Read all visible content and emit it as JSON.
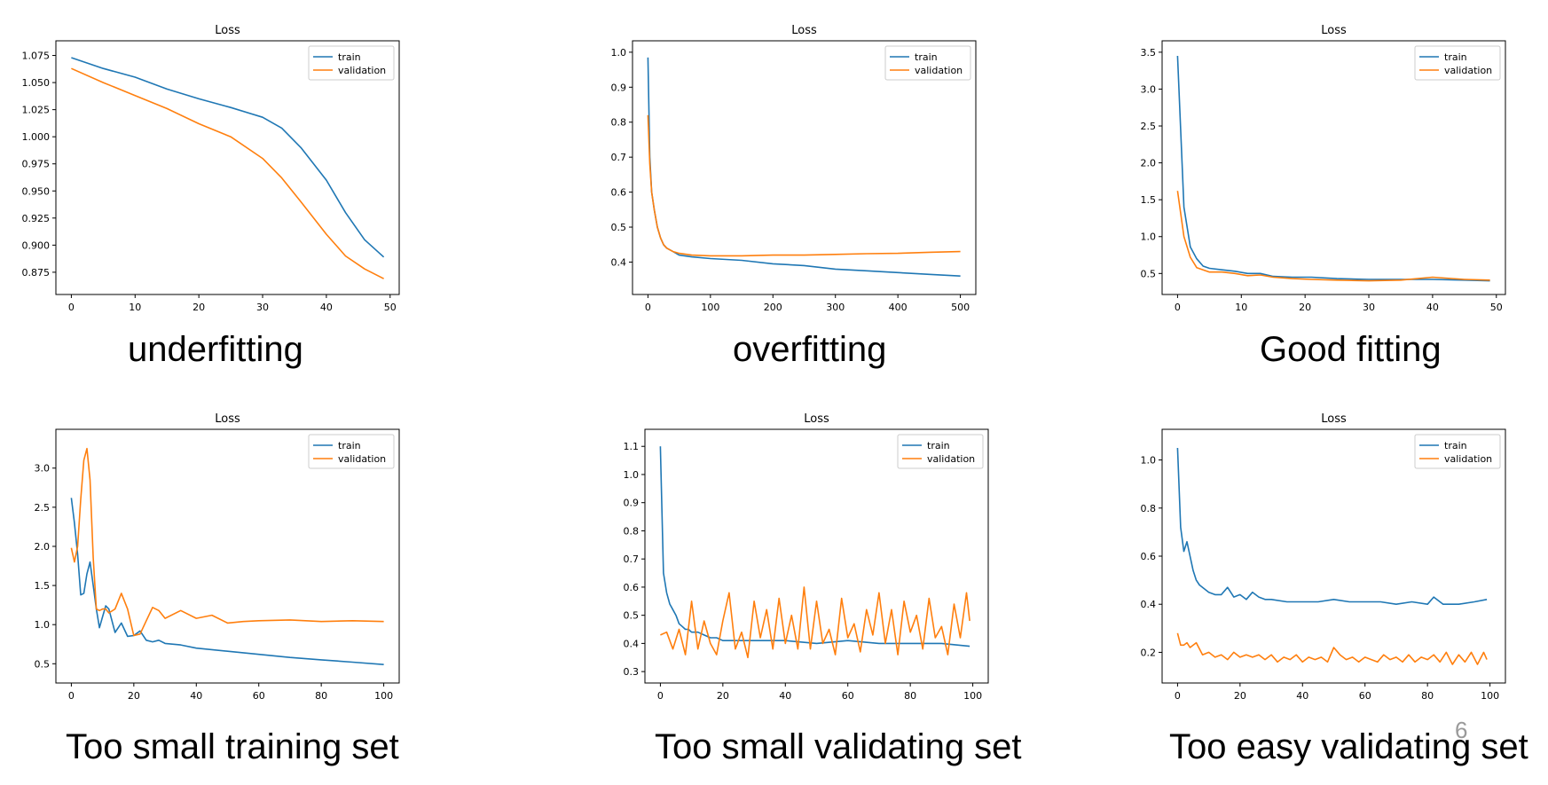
{
  "slide": {
    "page_number": "6"
  },
  "colors": {
    "train": "#1f77b4",
    "validation": "#ff7f0e"
  },
  "legend": {
    "position": "top-right"
  },
  "chart_data": [
    {
      "type": "line",
      "title": "Loss",
      "caption": "underfitting",
      "xlim": [
        0,
        49
      ],
      "ylim": [
        0.865,
        1.078
      ],
      "xticks": [
        0,
        10,
        20,
        30,
        40,
        50
      ],
      "xtick_labels": [
        "0",
        "10",
        "20",
        "30",
        "40",
        "50"
      ],
      "yticks": [
        0.875,
        0.9,
        0.925,
        0.95,
        0.975,
        1.0,
        1.025,
        1.05,
        1.075
      ],
      "ytick_labels": [
        "0.875",
        "0.900",
        "0.925",
        "0.950",
        "0.975",
        "1.000",
        "1.025",
        "1.050",
        "1.075"
      ],
      "series": [
        {
          "name": "train",
          "x": [
            0,
            5,
            10,
            15,
            20,
            25,
            30,
            33,
            36,
            40,
            43,
            46,
            49
          ],
          "y": [
            1.073,
            1.063,
            1.055,
            1.044,
            1.035,
            1.027,
            1.018,
            1.008,
            0.99,
            0.96,
            0.93,
            0.905,
            0.889
          ]
        },
        {
          "name": "validation",
          "x": [
            0,
            5,
            10,
            15,
            20,
            25,
            30,
            33,
            36,
            40,
            43,
            46,
            49
          ],
          "y": [
            1.063,
            1.05,
            1.038,
            1.026,
            1.012,
            1.0,
            0.98,
            0.962,
            0.94,
            0.91,
            0.89,
            0.878,
            0.869
          ]
        }
      ]
    },
    {
      "type": "line",
      "title": "Loss",
      "caption": "overfitting",
      "xlim": [
        0,
        500
      ],
      "ylim": [
        0.34,
        1.0
      ],
      "xticks": [
        0,
        100,
        200,
        300,
        400,
        500
      ],
      "xtick_labels": [
        "0",
        "100",
        "200",
        "300",
        "400",
        "500"
      ],
      "yticks": [
        0.4,
        0.5,
        0.6,
        0.7,
        0.8,
        0.9,
        1.0
      ],
      "ytick_labels": [
        "0.4",
        "0.5",
        "0.6",
        "0.7",
        "0.8",
        "0.9",
        "1.0"
      ],
      "series": [
        {
          "name": "train",
          "x": [
            0,
            3,
            6,
            10,
            15,
            20,
            25,
            30,
            40,
            50,
            70,
            100,
            150,
            200,
            250,
            300,
            350,
            400,
            450,
            500
          ],
          "y": [
            0.985,
            0.7,
            0.6,
            0.55,
            0.5,
            0.47,
            0.45,
            0.44,
            0.43,
            0.42,
            0.415,
            0.41,
            0.405,
            0.395,
            0.39,
            0.38,
            0.375,
            0.37,
            0.365,
            0.36
          ]
        },
        {
          "name": "validation",
          "x": [
            0,
            3,
            6,
            10,
            15,
            20,
            25,
            30,
            40,
            50,
            70,
            100,
            150,
            200,
            250,
            300,
            350,
            400,
            450,
            500
          ],
          "y": [
            0.82,
            0.68,
            0.6,
            0.55,
            0.5,
            0.47,
            0.45,
            0.44,
            0.43,
            0.425,
            0.42,
            0.418,
            0.418,
            0.42,
            0.42,
            0.422,
            0.424,
            0.425,
            0.428,
            0.43
          ]
        }
      ]
    },
    {
      "type": "line",
      "title": "Loss",
      "caption": "Good fitting",
      "xlim": [
        0,
        49
      ],
      "ylim": [
        0.37,
        3.5
      ],
      "xticks": [
        0,
        10,
        20,
        30,
        40,
        50
      ],
      "xtick_labels": [
        "0",
        "10",
        "20",
        "30",
        "40",
        "50"
      ],
      "yticks": [
        0.5,
        1.0,
        1.5,
        2.0,
        2.5,
        3.0,
        3.5
      ],
      "ytick_labels": [
        "0.5",
        "1.0",
        "1.5",
        "2.0",
        "2.5",
        "3.0",
        "3.5"
      ],
      "series": [
        {
          "name": "train",
          "x": [
            0,
            1,
            2,
            3,
            4,
            5,
            7,
            9,
            11,
            13,
            15,
            18,
            21,
            25,
            30,
            35,
            40,
            45,
            49
          ],
          "y": [
            3.45,
            1.4,
            0.86,
            0.7,
            0.6,
            0.57,
            0.55,
            0.53,
            0.5,
            0.5,
            0.46,
            0.45,
            0.45,
            0.43,
            0.42,
            0.42,
            0.42,
            0.41,
            0.4
          ]
        },
        {
          "name": "validation",
          "x": [
            0,
            1,
            2,
            3,
            4,
            5,
            7,
            9,
            11,
            13,
            15,
            18,
            21,
            25,
            30,
            35,
            40,
            45,
            49
          ],
          "y": [
            1.62,
            1.0,
            0.72,
            0.58,
            0.55,
            0.52,
            0.52,
            0.5,
            0.47,
            0.48,
            0.45,
            0.43,
            0.42,
            0.41,
            0.4,
            0.41,
            0.45,
            0.42,
            0.41
          ]
        }
      ]
    },
    {
      "type": "line",
      "title": "Loss",
      "caption": "Too small training set",
      "xlim": [
        0,
        100
      ],
      "ylim": [
        0.4,
        3.35
      ],
      "xticks": [
        0,
        20,
        40,
        60,
        80,
        100
      ],
      "xtick_labels": [
        "0",
        "20",
        "40",
        "60",
        "80",
        "100"
      ],
      "yticks": [
        0.5,
        1.0,
        1.5,
        2.0,
        2.5,
        3.0
      ],
      "ytick_labels": [
        "0.5",
        "1.0",
        "1.5",
        "2.0",
        "2.5",
        "3.0"
      ],
      "series": [
        {
          "name": "train",
          "x": [
            0,
            1,
            2,
            3,
            4,
            5,
            6,
            7,
            8,
            9,
            10,
            11,
            12,
            14,
            16,
            18,
            20,
            22,
            24,
            26,
            28,
            30,
            35,
            40,
            50,
            60,
            70,
            80,
            90,
            100
          ],
          "y": [
            2.62,
            2.3,
            1.9,
            1.38,
            1.4,
            1.65,
            1.8,
            1.5,
            1.2,
            0.96,
            1.1,
            1.24,
            1.2,
            0.9,
            1.02,
            0.85,
            0.86,
            0.92,
            0.8,
            0.78,
            0.8,
            0.76,
            0.74,
            0.7,
            0.66,
            0.62,
            0.58,
            0.55,
            0.52,
            0.49
          ]
        },
        {
          "name": "validation",
          "x": [
            0,
            1,
            2,
            3,
            4,
            5,
            6,
            7,
            8,
            9,
            10,
            11,
            12,
            14,
            16,
            18,
            20,
            22,
            24,
            26,
            28,
            30,
            35,
            40,
            45,
            50,
            55,
            60,
            70,
            80,
            90,
            100
          ],
          "y": [
            1.98,
            1.8,
            2.0,
            2.6,
            3.1,
            3.25,
            2.85,
            1.85,
            1.2,
            1.18,
            1.2,
            1.2,
            1.15,
            1.2,
            1.4,
            1.2,
            0.86,
            0.88,
            1.05,
            1.22,
            1.18,
            1.08,
            1.18,
            1.08,
            1.12,
            1.02,
            1.04,
            1.05,
            1.06,
            1.04,
            1.05,
            1.04
          ]
        }
      ]
    },
    {
      "type": "line",
      "title": "Loss",
      "caption": "Too small validating set",
      "xlim": [
        0,
        100
      ],
      "ylim": [
        0.3,
        1.12
      ],
      "xticks": [
        0,
        20,
        40,
        60,
        80,
        100
      ],
      "xtick_labels": [
        "0",
        "20",
        "40",
        "60",
        "80",
        "100"
      ],
      "yticks": [
        0.3,
        0.4,
        0.5,
        0.6,
        0.7,
        0.8,
        0.9,
        1.0,
        1.1
      ],
      "ytick_labels": [
        "0.3",
        "0.4",
        "0.5",
        "0.6",
        "0.7",
        "0.8",
        "0.9",
        "1.0",
        "1.1"
      ],
      "series": [
        {
          "name": "train",
          "x": [
            0,
            1,
            2,
            3,
            4,
            5,
            6,
            7,
            8,
            9,
            10,
            12,
            14,
            16,
            18,
            20,
            25,
            30,
            40,
            50,
            60,
            70,
            80,
            90,
            99
          ],
          "y": [
            1.1,
            0.65,
            0.58,
            0.54,
            0.52,
            0.5,
            0.47,
            0.46,
            0.45,
            0.45,
            0.44,
            0.44,
            0.43,
            0.42,
            0.42,
            0.41,
            0.41,
            0.41,
            0.41,
            0.4,
            0.41,
            0.4,
            0.4,
            0.4,
            0.39
          ]
        },
        {
          "name": "validation",
          "x": [
            0,
            2,
            4,
            6,
            8,
            10,
            12,
            14,
            16,
            18,
            20,
            22,
            24,
            26,
            28,
            30,
            32,
            34,
            36,
            38,
            40,
            42,
            44,
            46,
            48,
            50,
            52,
            54,
            56,
            58,
            60,
            62,
            64,
            66,
            68,
            70,
            72,
            74,
            76,
            78,
            80,
            82,
            84,
            86,
            88,
            90,
            92,
            94,
            96,
            98,
            99
          ],
          "y": [
            0.43,
            0.44,
            0.38,
            0.45,
            0.36,
            0.55,
            0.38,
            0.48,
            0.4,
            0.36,
            0.48,
            0.58,
            0.38,
            0.44,
            0.35,
            0.55,
            0.42,
            0.52,
            0.38,
            0.56,
            0.4,
            0.5,
            0.38,
            0.6,
            0.38,
            0.55,
            0.4,
            0.45,
            0.36,
            0.56,
            0.42,
            0.47,
            0.37,
            0.52,
            0.43,
            0.58,
            0.4,
            0.52,
            0.36,
            0.55,
            0.44,
            0.5,
            0.38,
            0.56,
            0.42,
            0.46,
            0.36,
            0.54,
            0.42,
            0.58,
            0.48
          ]
        }
      ]
    },
    {
      "type": "line",
      "title": "Loss",
      "caption": "Too easy validating set",
      "xlim": [
        0,
        100
      ],
      "ylim": [
        0.12,
        1.08
      ],
      "xticks": [
        0,
        20,
        40,
        60,
        80,
        100
      ],
      "xtick_labels": [
        "0",
        "20",
        "40",
        "60",
        "80",
        "100"
      ],
      "yticks": [
        0.2,
        0.4,
        0.6,
        0.8,
        1.0
      ],
      "ytick_labels": [
        "0.2",
        "0.4",
        "0.6",
        "0.8",
        "1.0"
      ],
      "series": [
        {
          "name": "train",
          "x": [
            0,
            1,
            2,
            3,
            4,
            5,
            6,
            7,
            8,
            10,
            12,
            14,
            16,
            18,
            20,
            22,
            24,
            26,
            28,
            30,
            35,
            40,
            45,
            50,
            55,
            60,
            65,
            70,
            75,
            80,
            82,
            85,
            90,
            95,
            99
          ],
          "y": [
            1.05,
            0.72,
            0.62,
            0.66,
            0.6,
            0.54,
            0.5,
            0.48,
            0.47,
            0.45,
            0.44,
            0.44,
            0.47,
            0.43,
            0.44,
            0.42,
            0.45,
            0.43,
            0.42,
            0.42,
            0.41,
            0.41,
            0.41,
            0.42,
            0.41,
            0.41,
            0.41,
            0.4,
            0.41,
            0.4,
            0.43,
            0.4,
            0.4,
            0.41,
            0.42
          ]
        },
        {
          "name": "validation",
          "x": [
            0,
            1,
            2,
            3,
            4,
            6,
            8,
            10,
            12,
            14,
            16,
            18,
            20,
            22,
            24,
            26,
            28,
            30,
            32,
            34,
            36,
            38,
            40,
            42,
            44,
            46,
            48,
            50,
            52,
            54,
            56,
            58,
            60,
            62,
            64,
            66,
            68,
            70,
            72,
            74,
            76,
            78,
            80,
            82,
            84,
            86,
            88,
            90,
            92,
            94,
            96,
            98,
            99
          ],
          "y": [
            0.28,
            0.23,
            0.23,
            0.24,
            0.22,
            0.24,
            0.19,
            0.2,
            0.18,
            0.19,
            0.17,
            0.2,
            0.18,
            0.19,
            0.18,
            0.19,
            0.17,
            0.19,
            0.16,
            0.18,
            0.17,
            0.19,
            0.16,
            0.18,
            0.17,
            0.18,
            0.16,
            0.22,
            0.19,
            0.17,
            0.18,
            0.16,
            0.18,
            0.17,
            0.16,
            0.19,
            0.17,
            0.18,
            0.16,
            0.19,
            0.16,
            0.18,
            0.17,
            0.19,
            0.16,
            0.2,
            0.15,
            0.19,
            0.16,
            0.2,
            0.15,
            0.2,
            0.17
          ]
        }
      ]
    }
  ]
}
